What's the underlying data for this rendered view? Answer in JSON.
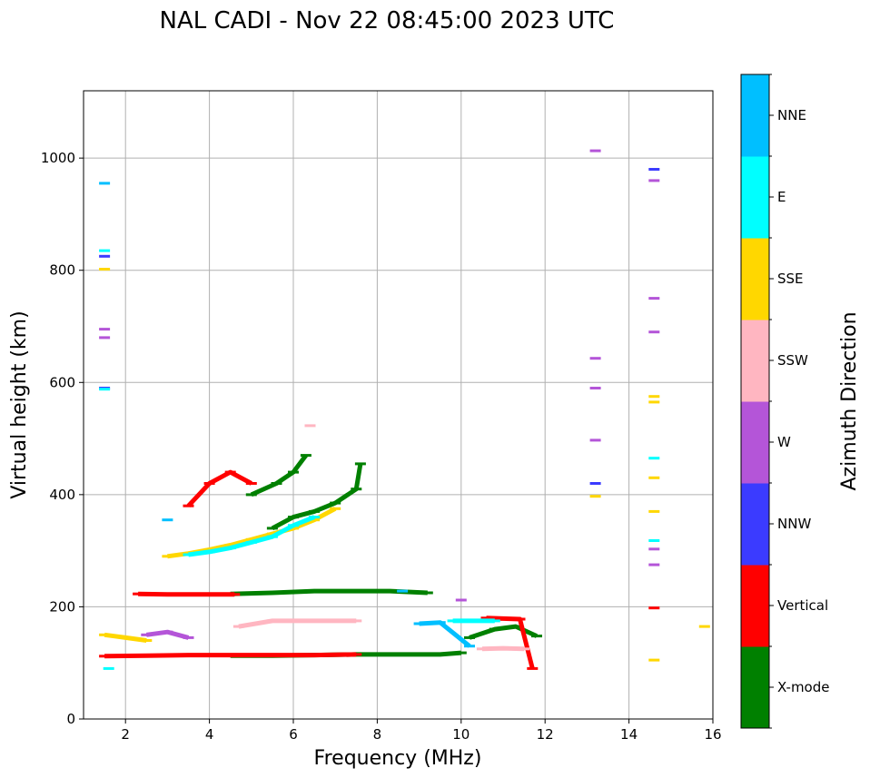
{
  "chart_data": {
    "type": "scatter",
    "title": "NAL CADI - Nov 22 08:45:00 2023 UTC",
    "xlabel": "Frequency (MHz)",
    "ylabel": "Virtual height (km)",
    "xlim": [
      1,
      16
    ],
    "ylim": [
      0,
      1120
    ],
    "xticks": [
      2,
      4,
      6,
      8,
      10,
      12,
      14,
      16
    ],
    "yticks": [
      0,
      200,
      400,
      600,
      800,
      1000
    ],
    "grid": true,
    "colorbar": {
      "label": "Azimuth Direction",
      "categories": [
        {
          "name": "X-mode",
          "color": "#008000"
        },
        {
          "name": "Vertical",
          "color": "#ff0000"
        },
        {
          "name": "NNW",
          "color": "#3b3bff"
        },
        {
          "name": "W",
          "color": "#b455d8"
        },
        {
          "name": "SSW",
          "color": "#ffb6c1"
        },
        {
          "name": "SSE",
          "color": "#ffd700"
        },
        {
          "name": "E",
          "color": "#00ffff"
        },
        {
          "name": "NNE",
          "color": "#00bfff"
        }
      ]
    },
    "series": [
      {
        "name": "X-mode",
        "segments": [
          [
            [
              4.5,
              223
            ],
            [
              5.5,
              225
            ],
            [
              6.5,
              228
            ],
            [
              7.5,
              228
            ],
            [
              8.3,
              228
            ],
            [
              9.2,
              225
            ]
          ],
          [
            [
              4.5,
              113
            ],
            [
              5.5,
              113
            ],
            [
              6.5,
              114
            ],
            [
              7.5,
              115
            ],
            [
              8.5,
              115
            ],
            [
              9.5,
              115
            ],
            [
              10,
              118
            ]
          ],
          [
            [
              10.2,
              145
            ],
            [
              10.8,
              160
            ],
            [
              11.3,
              165
            ],
            [
              11.8,
              148
            ]
          ],
          [
            [
              5.5,
              340
            ],
            [
              6.0,
              360
            ],
            [
              6.5,
              370
            ],
            [
              7.0,
              385
            ],
            [
              7.5,
              410
            ],
            [
              7.6,
              455
            ]
          ],
          [
            [
              5.0,
              400
            ],
            [
              5.6,
              420
            ],
            [
              6.0,
              440
            ],
            [
              6.3,
              470
            ]
          ]
        ]
      },
      {
        "name": "Vertical",
        "segments": [
          [
            [
              1.5,
              112
            ],
            [
              2.5,
              113
            ],
            [
              3.5,
              114
            ],
            [
              4.5,
              114
            ],
            [
              5.5,
              114
            ],
            [
              6.5,
              114
            ],
            [
              7.5,
              115
            ]
          ],
          [
            [
              2.3,
              223
            ],
            [
              3.0,
              222
            ],
            [
              3.8,
              222
            ],
            [
              4.6,
              222
            ]
          ],
          [
            [
              3.5,
              380
            ],
            [
              4.0,
              420
            ],
            [
              4.5,
              440
            ],
            [
              5.0,
              420
            ]
          ],
          [
            [
              10.6,
              180
            ],
            [
              11.4,
              178
            ],
            [
              11.7,
              90
            ]
          ],
          [
            [
              14.6,
              198
            ]
          ]
        ]
      },
      {
        "name": "NNW",
        "segments": [
          [
            [
              1.5,
              590
            ]
          ],
          [
            [
              1.5,
              825
            ]
          ],
          [
            [
              13.2,
              420
            ]
          ],
          [
            [
              14.6,
              980
            ]
          ],
          [
            [
              9.2,
              170
            ]
          ]
        ]
      },
      {
        "name": "W",
        "segments": [
          [
            [
              1.5,
              680
            ]
          ],
          [
            [
              1.5,
              695
            ]
          ],
          [
            [
              13.2,
              1013
            ]
          ],
          [
            [
              13.2,
              643
            ]
          ],
          [
            [
              13.2,
              590
            ]
          ],
          [
            [
              13.2,
              497
            ]
          ],
          [
            [
              14.6,
              960
            ]
          ],
          [
            [
              14.6,
              750
            ]
          ],
          [
            [
              14.6,
              690
            ]
          ],
          [
            [
              14.6,
              303
            ]
          ],
          [
            [
              14.6,
              275
            ]
          ],
          [
            [
              10.0,
              212
            ]
          ],
          [
            [
              2.5,
              150
            ],
            [
              3.0,
              155
            ],
            [
              3.5,
              145
            ]
          ]
        ]
      },
      {
        "name": "SSW",
        "segments": [
          [
            [
              10.5,
              125
            ],
            [
              11.0,
              126
            ],
            [
              11.5,
              125
            ]
          ],
          [
            [
              6.4,
              523
            ]
          ],
          [
            [
              4.7,
              165
            ],
            [
              5.5,
              175
            ],
            [
              7.5,
              175
            ]
          ]
        ]
      },
      {
        "name": "SSE",
        "segments": [
          [
            [
              1.5,
              802
            ]
          ],
          [
            [
              13.2,
              397
            ]
          ],
          [
            [
              14.6,
              575
            ]
          ],
          [
            [
              14.6,
              565
            ]
          ],
          [
            [
              14.6,
              430
            ]
          ],
          [
            [
              14.6,
              370
            ]
          ],
          [
            [
              14.6,
              105
            ]
          ],
          [
            [
              15.8,
              165
            ]
          ],
          [
            [
              3.0,
              290
            ],
            [
              3.5,
              295
            ],
            [
              4.0,
              302
            ],
            [
              4.5,
              310
            ],
            [
              5.0,
              320
            ],
            [
              5.5,
              330
            ],
            [
              6.0,
              340
            ],
            [
              6.5,
              355
            ],
            [
              7.0,
              375
            ]
          ],
          [
            [
              1.5,
              150
            ],
            [
              2.0,
              145
            ],
            [
              2.5,
              140
            ]
          ]
        ]
      },
      {
        "name": "E",
        "segments": [
          [
            [
              1.5,
              835
            ]
          ],
          [
            [
              1.5,
              588
            ]
          ],
          [
            [
              14.6,
              465
            ]
          ],
          [
            [
              14.6,
              318
            ]
          ],
          [
            [
              3.5,
              293
            ],
            [
              4.0,
              298
            ],
            [
              4.5,
              305
            ],
            [
              5.0,
              315
            ],
            [
              5.5,
              325
            ],
            [
              6.0,
              345
            ],
            [
              6.5,
              360
            ]
          ],
          [
            [
              1.6,
              90
            ]
          ],
          [
            [
              9.8,
              175
            ],
            [
              10.8,
              175
            ]
          ]
        ]
      },
      {
        "name": "NNE",
        "segments": [
          [
            [
              1.5,
              955
            ]
          ],
          [
            [
              3.0,
              355
            ]
          ],
          [
            [
              8.6,
              228
            ]
          ],
          [
            [
              9.0,
              170
            ],
            [
              9.5,
              172
            ],
            [
              10.2,
              130
            ]
          ]
        ]
      }
    ]
  }
}
